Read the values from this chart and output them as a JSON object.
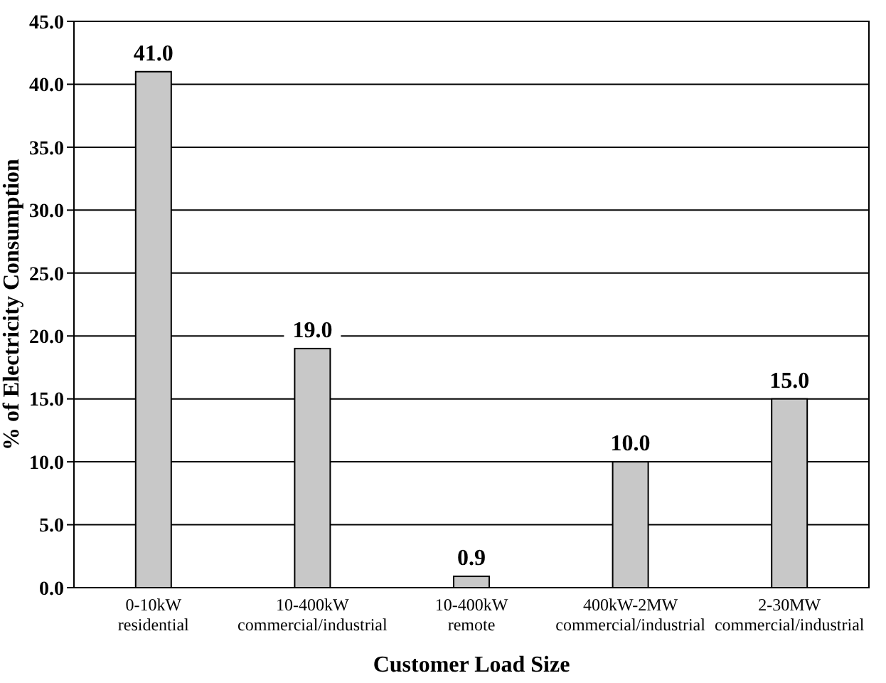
{
  "chart_data": {
    "type": "bar",
    "xlabel": "Customer Load Size",
    "ylabel": "% of Electricity Consumption",
    "categories": [
      "0-10kW\nresidential",
      "10-400kW\ncommercial/industrial",
      "10-400kW\nremote",
      "400kW-2MW\ncommercial/industrial",
      "2-30MW\ncommercial/industrial"
    ],
    "values": [
      41.0,
      19.0,
      0.9,
      10.0,
      15.0
    ],
    "value_labels": [
      "41.0",
      "19.0",
      "0.9",
      "10.0",
      "15.0"
    ],
    "color": "#c8c8c8",
    "ylim": [
      0,
      45
    ],
    "yticks": [
      {
        "value": 0,
        "label": "0.0"
      },
      {
        "value": 5,
        "label": "5.0"
      },
      {
        "value": 10,
        "label": "10.0"
      },
      {
        "value": 15,
        "label": "15.0"
      },
      {
        "value": 20,
        "label": "20.0"
      },
      {
        "value": 25,
        "label": "25.0"
      },
      {
        "value": 30,
        "label": "30.0"
      },
      {
        "value": 35,
        "label": "35.0"
      },
      {
        "value": 40,
        "label": "40.0"
      },
      {
        "value": 45,
        "label": "45.0"
      }
    ],
    "grid": "y"
  }
}
